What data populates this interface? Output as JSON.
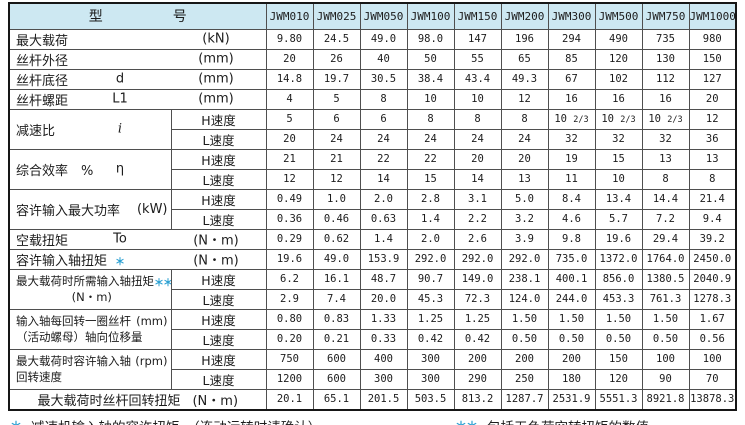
{
  "table": {
    "corner_label": {
      "left": "型",
      "right": "号"
    },
    "models": [
      "JWM010",
      "JWM025",
      "JWM050",
      "JWM100",
      "JWM150",
      "JWM200",
      "JWM300",
      "JWM500",
      "JWM750",
      "JWM1000"
    ],
    "speed_labels": {
      "h": "H速度",
      "l": "L速度"
    },
    "rows": [
      {
        "type": "simple",
        "name": "最大载荷",
        "unit": "(kN)",
        "values": [
          "9.80",
          "24.5",
          "49.0",
          "98.0",
          "147",
          "196",
          "294",
          "490",
          "735",
          "980"
        ]
      },
      {
        "type": "simple",
        "name": "丝杆外径",
        "unit": "(mm)",
        "values": [
          "20",
          "26",
          "40",
          "50",
          "55",
          "65",
          "85",
          "120",
          "130",
          "150"
        ]
      },
      {
        "type": "simple",
        "name": "丝杆底径",
        "sym": "d",
        "unit": "(mm)",
        "values": [
          "14.8",
          "19.7",
          "30.5",
          "38.4",
          "43.4",
          "49.3",
          "67",
          "102",
          "112",
          "127"
        ]
      },
      {
        "type": "simple",
        "name": "丝杆螺距",
        "sym": "L1",
        "unit": "(mm)",
        "values": [
          "4",
          "5",
          "8",
          "10",
          "10",
          "12",
          "16",
          "16",
          "16",
          "20"
        ]
      },
      {
        "type": "group",
        "name": "减速比",
        "sym": "i",
        "sym_italic": true,
        "h": [
          "5",
          "6",
          "6",
          "8",
          "8",
          "8",
          "10 2/3",
          "10 2/3",
          "10 2/3",
          "12"
        ],
        "l": [
          "20",
          "24",
          "24",
          "24",
          "24",
          "24",
          "32",
          "32",
          "32",
          "36"
        ]
      },
      {
        "type": "group",
        "name": "综合效率　%",
        "sym": "η",
        "h": [
          "21",
          "21",
          "22",
          "22",
          "20",
          "20",
          "19",
          "15",
          "13",
          "13"
        ],
        "l": [
          "12",
          "12",
          "14",
          "15",
          "14",
          "13",
          "11",
          "10",
          "8",
          "8"
        ]
      },
      {
        "type": "group",
        "name": "容许输入最大功率",
        "tail": "(kW)",
        "h": [
          "0.49",
          "1.0",
          "2.0",
          "2.8",
          "3.1",
          "5.0",
          "8.4",
          "13.4",
          "14.4",
          "21.4"
        ],
        "l": [
          "0.36",
          "0.46",
          "0.63",
          "1.4",
          "2.2",
          "3.2",
          "4.6",
          "5.7",
          "7.2",
          "9.4"
        ]
      },
      {
        "type": "simple",
        "name": "空载扭矩",
        "sym": "To",
        "unit": "(N・m)",
        "values": [
          "0.29",
          "0.62",
          "1.4",
          "2.0",
          "2.6",
          "3.9",
          "9.8",
          "19.6",
          "29.4",
          "39.2"
        ]
      },
      {
        "type": "simple",
        "name": "容许输入轴扭矩",
        "star": "＊",
        "unit": "(N・m)",
        "values": [
          "19.6",
          "49.0",
          "153.9",
          "292.0",
          "292.0",
          "292.0",
          "735.0",
          "1372.0",
          "1764.0",
          "2450.0"
        ]
      },
      {
        "type": "group",
        "small": true,
        "name": "最大载荷时所需输入轴扭矩",
        "star": "＊＊",
        "line2": "(N・m)",
        "line2_align": "center",
        "h": [
          "6.2",
          "16.1",
          "48.7",
          "90.7",
          "149.0",
          "238.1",
          "400.1",
          "856.0",
          "1380.5",
          "2040.9"
        ],
        "l": [
          "2.9",
          "7.4",
          "20.0",
          "45.3",
          "72.3",
          "124.0",
          "244.0",
          "453.3",
          "761.3",
          "1278.3"
        ]
      },
      {
        "type": "group",
        "small": true,
        "name": "输入轴每回转一圈丝杆",
        "tail": "(mm)",
        "line2": "（活动螺母）轴向位移量",
        "line2_align": "left",
        "h": [
          "0.80",
          "0.83",
          "1.33",
          "1.25",
          "1.25",
          "1.50",
          "1.50",
          "1.50",
          "1.50",
          "1.67"
        ],
        "l": [
          "0.20",
          "0.21",
          "0.33",
          "0.42",
          "0.42",
          "0.50",
          "0.50",
          "0.50",
          "0.50",
          "0.56"
        ]
      },
      {
        "type": "group",
        "small": true,
        "name": "最大载荷时容许输入轴",
        "tail": "(rpm)",
        "line2": "回转速度",
        "line2_align": "left",
        "h": [
          "750",
          "600",
          "400",
          "300",
          "200",
          "200",
          "200",
          "150",
          "100",
          "100"
        ],
        "l": [
          "1200",
          "600",
          "300",
          "300",
          "290",
          "250",
          "180",
          "120",
          "90",
          "70"
        ]
      },
      {
        "type": "center",
        "name": "最大载荷时丝杆回转扭矩",
        "unit": "(N・m)",
        "values": [
          "20.1",
          "65.1",
          "201.5",
          "503.5",
          "813.2",
          "1287.7",
          "2531.9",
          "5551.3",
          "8921.8",
          "13878.3"
        ]
      }
    ]
  },
  "footnotes": [
    {
      "star": "＊",
      "text": "减速机输入轴的容许扭矩。（连动运转时请确认）"
    },
    {
      "star": "＊＊",
      "text": "包括无负荷空转扭矩的数值。"
    }
  ]
}
